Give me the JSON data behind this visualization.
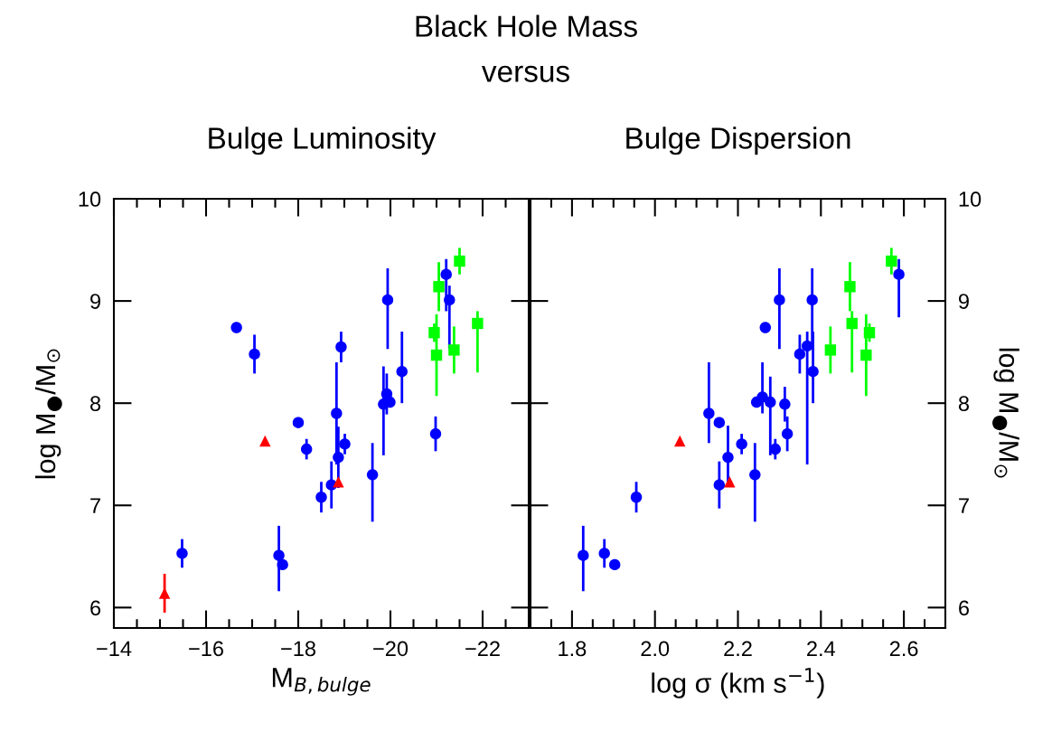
{
  "chart_data": [
    {
      "type": "scatter",
      "title": "Bulge Luminosity",
      "annotations": [
        "Black Hole Mass",
        "versus"
      ],
      "xlabel": "M$_{B,bulge}$",
      "ylabel": "log M$_{●}$/M$_{⊙}$",
      "xlim": [
        -14,
        -23
      ],
      "xticks": [
        {
          "value": -14,
          "label": "−14"
        },
        {
          "value": -16,
          "label": "−16"
        },
        {
          "value": -18,
          "label": "−18"
        },
        {
          "value": -20,
          "label": "−20"
        },
        {
          "value": -22,
          "label": "−22"
        }
      ],
      "ylim": [
        5.8,
        10
      ],
      "yticks": [
        6,
        7,
        8,
        9,
        10
      ],
      "grid": false,
      "legend": false,
      "series": [
        {
          "color": "#0000ff",
          "marker": "circle",
          "x": [
            -15.48,
            -16.66,
            -17.05,
            -18.0,
            -18.18,
            -17.58,
            -17.66,
            -18.5,
            -18.72,
            -18.83,
            -18.87,
            -18.93,
            -19.01,
            -19.61,
            -19.85,
            -19.92,
            -19.99,
            -19.94,
            -20.25,
            -20.98,
            -21.21,
            -21.28
          ],
          "values": [
            6.53,
            8.74,
            8.48,
            7.81,
            7.55,
            6.51,
            6.42,
            7.08,
            7.2,
            7.9,
            7.47,
            8.55,
            7.6,
            7.3,
            7.99,
            8.09,
            8.01,
            9.01,
            8.31,
            7.7,
            9.26,
            9.01
          ],
          "errors": [
            0.14,
            0.03,
            0.19,
            0.05,
            0.1,
            [
              6.16,
              6.8
            ],
            null,
            0.15,
            0.23,
            0.5,
            0.3,
            0.15,
            0.1,
            [
              6.84,
              7.61
            ],
            [
              7.49,
              8.36
            ],
            0.2,
            0.05,
            [
              8.53,
              9.32
            ],
            [
              8.0,
              8.7
            ],
            0.17,
            [
              8.9,
              9.41
            ],
            [
              8.53,
              9.15
            ]
          ]
        },
        {
          "color": "#00ff00",
          "marker": "square",
          "x": [
            -21.05,
            -21.5,
            -20.95,
            -21.0,
            -21.38,
            -21.89
          ],
          "values": [
            9.14,
            9.39,
            8.69,
            8.47,
            8.52,
            8.78
          ],
          "errors": [
            0.24,
            0.13,
            0.09,
            0.4,
            0.23,
            [
              8.3,
              8.9
            ]
          ]
        },
        {
          "color": "#ff0000",
          "marker": "triangle",
          "x": [
            -15.1,
            -17.28,
            -18.87
          ],
          "values": [
            6.14,
            7.63,
            7.23
          ],
          "errors": [
            0.19,
            null,
            null
          ]
        }
      ]
    },
    {
      "type": "scatter",
      "title": "Bulge Dispersion",
      "xlabel": "log σ (km s$^{−1}$)",
      "y2label": "log M$_{●}$/M$_{⊙}$",
      "xlim": [
        1.7,
        2.7
      ],
      "xticks": [
        1.8,
        {
          "value": 2.0,
          "label": "2.0"
        },
        2.2,
        2.4,
        2.6
      ],
      "y2lim": [
        5.8,
        10
      ],
      "y2ticks": [
        6,
        7,
        8,
        9,
        10
      ],
      "grid": false,
      "legend": false,
      "series": [
        {
          "color": "#0000ff",
          "marker": "circle",
          "axis": "y2",
          "x": [
            1.827,
            1.878,
            1.903,
            1.955,
            2.13,
            2.155,
            2.155,
            2.176,
            2.209,
            2.241,
            2.245,
            2.259,
            2.278,
            2.266,
            2.29,
            2.3,
            2.313,
            2.319,
            2.349,
            2.367,
            2.379,
            2.381,
            2.588
          ],
          "values": [
            6.51,
            6.53,
            6.42,
            7.08,
            7.9,
            7.81,
            7.2,
            7.47,
            7.6,
            7.3,
            8.01,
            8.06,
            8.01,
            8.74,
            7.55,
            9.01,
            7.99,
            7.7,
            8.48,
            8.56,
            9.01,
            8.31,
            9.26
          ],
          "errors": [
            [
              6.16,
              6.8
            ],
            0.14,
            null,
            0.15,
            [
              7.61,
              8.4
            ],
            0.05,
            0.23,
            [
              7.2,
              7.78
            ],
            0.1,
            [
              6.84,
              7.61
            ],
            0.05,
            [
              7.9,
              8.4
            ],
            [
              7.49,
              8.26
            ],
            0.03,
            0.1,
            [
              8.53,
              9.32
            ],
            0.17,
            0.17,
            0.19,
            [
              7.4,
              8.7
            ],
            [
              8.53,
              9.32
            ],
            [
              8.0,
              8.7
            ],
            [
              8.84,
              9.41
            ]
          ]
        },
        {
          "color": "#00ff00",
          "marker": "square",
          "axis": "y2",
          "x": [
            2.47,
            2.57,
            2.517,
            2.509,
            2.423,
            2.475
          ],
          "values": [
            9.14,
            9.39,
            8.69,
            8.47,
            8.52,
            8.78
          ],
          "errors": [
            0.24,
            0.13,
            0.09,
            0.4,
            0.23,
            [
              8.3,
              8.9
            ]
          ]
        },
        {
          "color": "#ff0000",
          "marker": "triangle",
          "axis": "y2",
          "x": [
            2.06,
            2.18
          ],
          "values": [
            7.63,
            7.23
          ]
        }
      ]
    }
  ]
}
